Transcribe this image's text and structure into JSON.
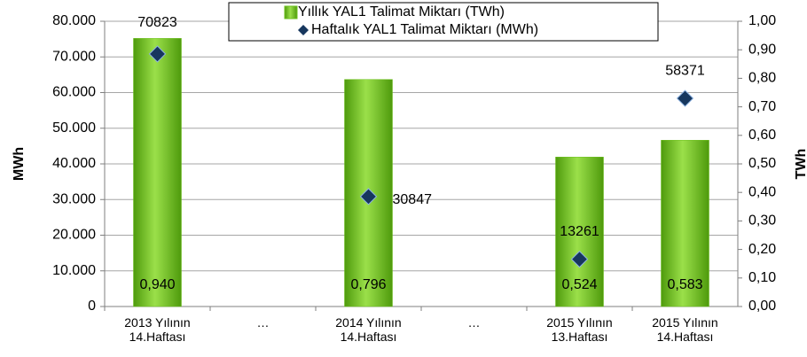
{
  "chart_data": {
    "type": "bar_line",
    "categories": [
      "2013 Yılının\n14.Haftası",
      "…",
      "2014 Yılının\n14.Haftası",
      "…",
      "2015 Yılının\n13.Haftası",
      "2015 Yılının\n14.Haftası"
    ],
    "series": [
      {
        "name": "Yıllık YAL1 Talimat Miktarı (TWh)",
        "type": "bar",
        "axis": "y2",
        "color": "#6cc01c",
        "values": [
          0.94,
          null,
          0.796,
          null,
          0.524,
          0.583
        ],
        "value_labels": [
          "0,940",
          null,
          "0,796",
          null,
          "0,524",
          "0,583"
        ]
      },
      {
        "name": "Haftalık YAL1 Talimat Miktarı (MWh)",
        "type": "scatter",
        "axis": "y",
        "color": "#17375e",
        "values": [
          70823,
          null,
          30847,
          null,
          13261,
          58371
        ]
      }
    ],
    "ylabel": "MWh",
    "y2label": "TWh",
    "ylim": [
      0,
      80000
    ],
    "yticks": [
      0,
      {
        "value": 10000,
        "label": "10.000"
      },
      {
        "value": 20000,
        "label": "20.000"
      },
      {
        "value": 30000,
        "label": "30.000"
      },
      {
        "value": 40000,
        "label": "40.000"
      },
      {
        "value": 50000,
        "label": "50.000"
      },
      {
        "value": 60000,
        "label": "60.000"
      },
      {
        "value": 70000,
        "label": "70.000"
      },
      {
        "value": 80000,
        "label": "80.000"
      }
    ],
    "y2lim": [
      0,
      1
    ],
    "y2ticks": [
      {
        "value": 0,
        "label": "0,00"
      },
      {
        "value": 0.1,
        "label": "0,10"
      },
      {
        "value": 0.2,
        "label": "0,20"
      },
      {
        "value": 0.3,
        "label": "0,30"
      },
      {
        "value": 0.4,
        "label": "0,40"
      },
      {
        "value": 0.5,
        "label": "0,50"
      },
      {
        "value": 0.6,
        "label": "0,60"
      },
      {
        "value": 0.7,
        "label": "0,70"
      },
      {
        "value": 0.8,
        "label": "0,80"
      },
      {
        "value": 0.9,
        "label": "0,90"
      },
      {
        "value": 1,
        "label": "1,00"
      }
    ],
    "grid": true,
    "legend": "top"
  }
}
